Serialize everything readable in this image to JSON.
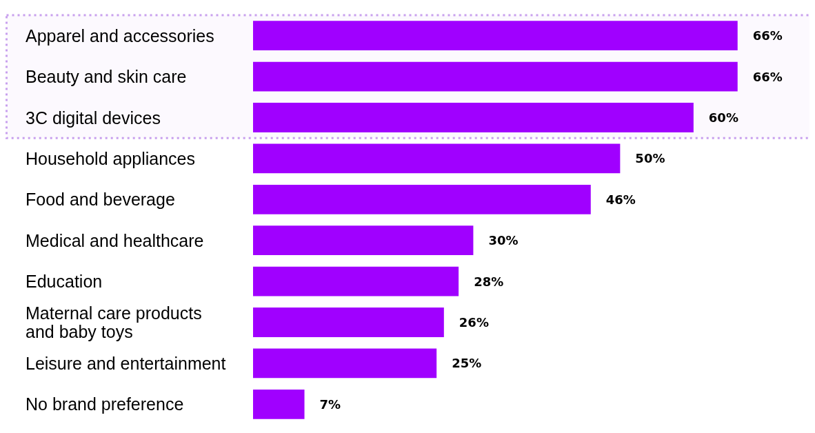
{
  "chart_data": {
    "type": "bar",
    "orientation": "horizontal",
    "color": "#a000ff",
    "categories": [
      "Apparel and accessories",
      "Beauty and skin care",
      "3C digital devices",
      "Household appliances",
      "Food and beverage",
      "Medical and healthcare",
      "Education",
      "Maternal care products and baby toys",
      "Leisure and entertainment",
      "No brand preference"
    ],
    "values": [
      66,
      66,
      60,
      50,
      46,
      30,
      28,
      26,
      25,
      7
    ],
    "value_labels": [
      "66%",
      "66%",
      "60%",
      "50%",
      "46%",
      "30%",
      "28%",
      "26%",
      "25%",
      "7%"
    ],
    "bands": [
      {
        "axis": "y",
        "from": "Apparel and accessories",
        "to": "3C digital devices",
        "color": "#c8a0ee"
      }
    ]
  }
}
